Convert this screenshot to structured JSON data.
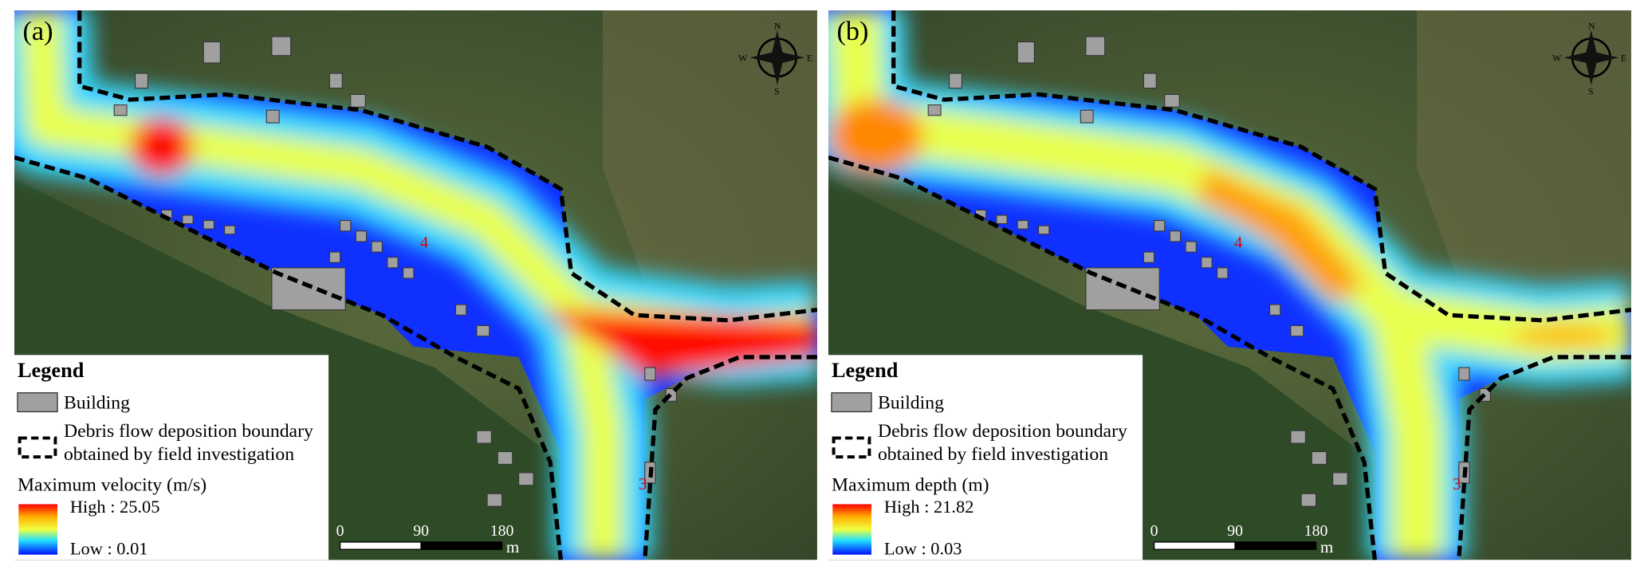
{
  "panels": [
    {
      "label": "(a)",
      "compass": {
        "n": "N",
        "e": "E",
        "s": "S",
        "w": "W"
      },
      "markers": [
        "4",
        "3"
      ],
      "legend": {
        "title": "Legend",
        "building": "Building",
        "boundary": [
          "Debris flow deposition boundary",
          "obtained by field investigation"
        ],
        "ramp_title": "Maximum velocity (m/s)",
        "high": "High : 25.05",
        "low": "Low : 0.01"
      },
      "scale": {
        "ticks": [
          "0",
          "90",
          "180"
        ],
        "unit": "m"
      }
    },
    {
      "label": "(b)",
      "compass": {
        "n": "N",
        "e": "E",
        "s": "S",
        "w": "W"
      },
      "markers": [
        "4",
        "3"
      ],
      "legend": {
        "title": "Legend",
        "building": "Building",
        "boundary": [
          "Debris flow deposition boundary",
          "obtained by field investigation"
        ],
        "ramp_title": "Maximum depth (m)",
        "high": "High : 21.82",
        "low": "Low : 0.03"
      },
      "scale": {
        "ticks": [
          "0",
          "90",
          "180"
        ],
        "unit": "m"
      }
    }
  ]
}
